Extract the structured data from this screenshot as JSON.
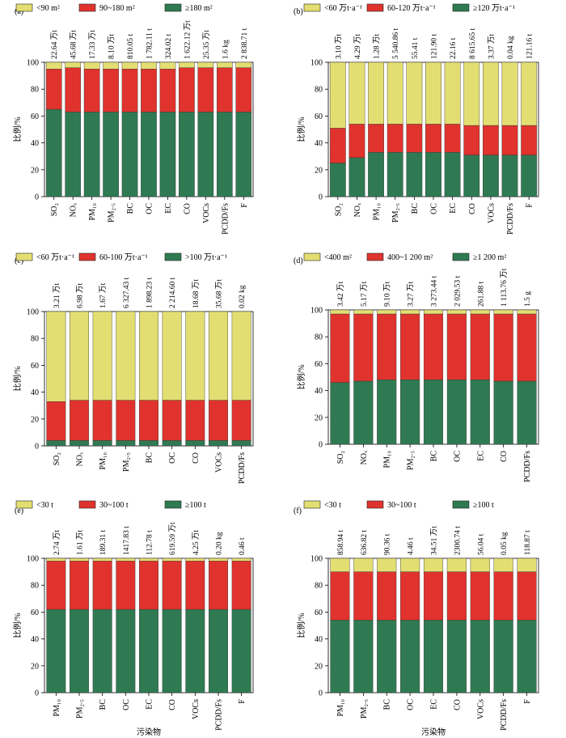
{
  "colors": {
    "yellow": "#e3de72",
    "red": "#e0332e",
    "green": "#2f7a52"
  },
  "y_axis_label": "比例/%",
  "x_axis_label": "污染物",
  "chart_data": [
    {
      "type": "bar",
      "stacked": true,
      "panel": "(a)",
      "legend": [
        "<90 m²",
        "90~180 m²",
        "≥180 m²"
      ],
      "categories": [
        "SO₂",
        "NOₓ",
        "PM₁₀",
        "PM₂.₅",
        "BC",
        "OC",
        "EC",
        "CO",
        "VOCs",
        "PCDD/Fs",
        "F"
      ],
      "totals": [
        "22.64 万t",
        "45.68 万t",
        "17.33 万t",
        "8.10 万t",
        "810.05 t",
        "1 782.11 t",
        "324.02 t",
        "1 622.12 万t",
        "25.35 万t",
        "1.6 kg",
        "2 838.71 t"
      ],
      "series": [
        {
          "name": "≥180 m²",
          "color": "green",
          "values": [
            65,
            63,
            63,
            63,
            63,
            63,
            63,
            63,
            63,
            63,
            63
          ]
        },
        {
          "name": "90~180 m²",
          "color": "red",
          "values": [
            30,
            33,
            32,
            32,
            32,
            32,
            32,
            33,
            33,
            33,
            33
          ]
        },
        {
          "name": "<90 m²",
          "color": "yellow",
          "values": [
            5,
            4,
            5,
            5,
            5,
            5,
            5,
            4,
            4,
            4,
            4
          ]
        }
      ],
      "ylim": [
        0,
        100
      ],
      "yticks": [
        0,
        20,
        40,
        60,
        80,
        100
      ],
      "xlabel": ""
    },
    {
      "type": "bar",
      "stacked": true,
      "panel": "(b)",
      "legend": [
        "<60 万t·a⁻¹",
        "60-120 万t·a⁻¹",
        "≥120 万t·a⁻¹"
      ],
      "categories": [
        "SO₂",
        "NOₓ",
        "PM₁₀",
        "PM₂.₅",
        "BC",
        "OC",
        "EC",
        "CO",
        "VOCs",
        "PCDD/Fs",
        "F"
      ],
      "totals": [
        "3.10 万t",
        "4.29 万t",
        "1.28 万t",
        "5 540.86 t",
        "55.41 t",
        "121.90 t",
        "22.16 t",
        "8 615.65 t",
        "3.37 万t",
        "0.04 kg",
        "121.16 t"
      ],
      "series": [
        {
          "name": "≥120 万t·a⁻¹",
          "color": "green",
          "values": [
            25,
            29,
            33,
            33,
            33,
            33,
            33,
            31,
            31,
            31,
            31
          ]
        },
        {
          "name": "60-120 万t·a⁻¹",
          "color": "red",
          "values": [
            26,
            25,
            21,
            21,
            21,
            21,
            21,
            22,
            22,
            22,
            22
          ]
        },
        {
          "name": "<60 万t·a⁻¹",
          "color": "yellow",
          "values": [
            49,
            46,
            46,
            46,
            46,
            46,
            46,
            47,
            47,
            47,
            47
          ]
        }
      ],
      "ylim": [
        0,
        100
      ],
      "yticks": [
        0,
        20,
        40,
        60,
        80,
        100
      ],
      "xlabel": ""
    },
    {
      "type": "bar",
      "stacked": true,
      "panel": "(c)",
      "legend": [
        "<60 万t·a⁻¹",
        "60-100 万t·a⁻¹",
        ">100 万t·a⁻¹"
      ],
      "categories": [
        "SO₂",
        "NOₓ",
        "PM₁₀",
        "PM₂.₅",
        "BC",
        "OC",
        "CO",
        "VOCs",
        "PCDD/Fs"
      ],
      "totals": [
        "3.21 万t",
        "6.98 万t",
        "1.67 万t",
        "6 327.43 t",
        "1 898.23 t",
        "2 214.60 t",
        "18.68 万t",
        "35.68 万t",
        "0.02 kg"
      ],
      "series": [
        {
          "name": ">100 万t·a⁻¹",
          "color": "green",
          "values": [
            4,
            4,
            4,
            4,
            4,
            4,
            4,
            4,
            4
          ]
        },
        {
          "name": "60-100 万t·a⁻¹",
          "color": "red",
          "values": [
            29,
            30,
            30,
            30,
            30,
            30,
            30,
            30,
            30
          ]
        },
        {
          "name": "<60 万t·a⁻¹",
          "color": "yellow",
          "values": [
            67,
            66,
            66,
            66,
            66,
            66,
            66,
            66,
            66
          ]
        }
      ],
      "ylim": [
        0,
        100
      ],
      "yticks": [
        0,
        20,
        40,
        60,
        80,
        100
      ],
      "xlabel": ""
    },
    {
      "type": "bar",
      "stacked": true,
      "panel": "(d)",
      "legend": [
        "<400 m²",
        "400~1 200 m²",
        "≥1 200 m²"
      ],
      "categories": [
        "SO₂",
        "NOₓ",
        "PM₁₀",
        "PM₂.₅",
        "BC",
        "OC",
        "EC",
        "CO",
        "PCDD/Fs"
      ],
      "totals": [
        "3.42 万t",
        "5.17 万t",
        "9.10 万t",
        "3.27 万t",
        "3 273.44 t",
        "2 029.53 t",
        "261.88 t",
        "1 113.76 万t",
        "1.5 g"
      ],
      "series": [
        {
          "name": "≥1 200 m²",
          "color": "green",
          "values": [
            46,
            47,
            48,
            48,
            48,
            48,
            48,
            47,
            47
          ]
        },
        {
          "name": "400~1 200 m²",
          "color": "red",
          "values": [
            51,
            50,
            49,
            49,
            49,
            49,
            49,
            50,
            50
          ]
        },
        {
          "name": "<400 m²",
          "color": "yellow",
          "values": [
            3,
            3,
            3,
            3,
            3,
            3,
            3,
            3,
            3
          ]
        }
      ],
      "ylim": [
        0,
        100
      ],
      "yticks": [
        0,
        20,
        40,
        60,
        80,
        100
      ],
      "xlabel": ""
    },
    {
      "type": "bar",
      "stacked": true,
      "panel": "(e)",
      "legend": [
        "<30 t",
        "30~100 t",
        "≥100 t"
      ],
      "categories": [
        "PM₁₀",
        "PM₂.₅",
        "BC",
        "OC",
        "EC",
        "CO",
        "VOCs",
        "PCDD/Fs",
        "F"
      ],
      "totals": [
        "2.74 万t",
        "1.61 万t",
        "189.31 t",
        "1417.83 t",
        "112.78 t",
        "619.59 万t",
        "4.25 万t",
        "0.20 kg",
        "0.46 t"
      ],
      "series": [
        {
          "name": "≥100 t",
          "color": "green",
          "values": [
            62,
            62,
            62,
            62,
            62,
            62,
            62,
            62,
            62
          ]
        },
        {
          "name": "30~100 t",
          "color": "red",
          "values": [
            36,
            36,
            36,
            36,
            36,
            36,
            36,
            36,
            36
          ]
        },
        {
          "name": "<30 t",
          "color": "yellow",
          "values": [
            2,
            2,
            2,
            2,
            2,
            2,
            2,
            2,
            2
          ]
        }
      ],
      "ylim": [
        0,
        100
      ],
      "yticks": [
        0,
        20,
        40,
        60,
        80,
        100
      ],
      "xlabel": "污染物"
    },
    {
      "type": "bar",
      "stacked": true,
      "panel": "(f)",
      "legend": [
        "<30 t",
        "30~100 t",
        "≥100 t"
      ],
      "categories": [
        "PM₁₀",
        "PM₂.₅",
        "BC",
        "OC",
        "EC",
        "CO",
        "VOCs",
        "PCDD/Fs",
        "F"
      ],
      "totals": [
        "858.94 t",
        "636.82 t",
        "90.36 t",
        "4.46 t",
        "34.51 万t",
        "2300.74 t",
        "56.04 t",
        "0.05 kg",
        "118.87 t"
      ],
      "series": [
        {
          "name": "≥100 t",
          "color": "green",
          "values": [
            54,
            54,
            54,
            54,
            54,
            54,
            54,
            54,
            54
          ]
        },
        {
          "name": "30~100 t",
          "color": "red",
          "values": [
            36,
            36,
            36,
            36,
            36,
            36,
            36,
            36,
            36
          ]
        },
        {
          "name": "<30 t",
          "color": "yellow",
          "values": [
            10,
            10,
            10,
            10,
            10,
            10,
            10,
            10,
            10
          ]
        }
      ],
      "ylim": [
        0,
        100
      ],
      "yticks": [
        0,
        20,
        40,
        60,
        80,
        100
      ],
      "xlabel": "污染物"
    }
  ]
}
